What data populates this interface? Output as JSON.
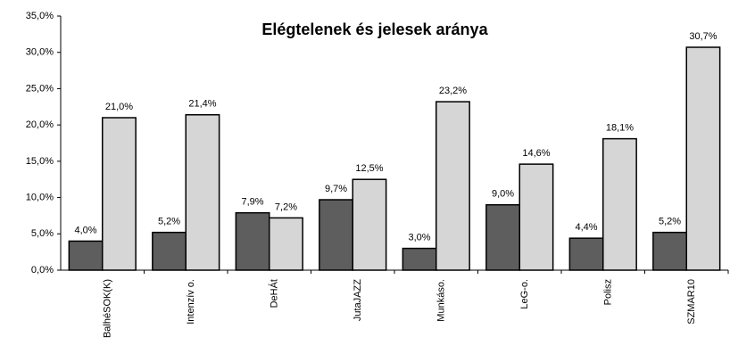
{
  "chart_data": {
    "type": "bar",
    "title": "Elégtelenek és jelesek aránya",
    "categories": [
      "BalhéSOK(K)",
      "Intenzív o.",
      "DeHÁt",
      "JutaJAZZ",
      "Munkáso.",
      "LeG-o.",
      "Polisz",
      "SZMAR10"
    ],
    "series": [
      {
        "color": "#5e5e5e",
        "values": [
          4.0,
          5.2,
          7.9,
          9.7,
          3.0,
          9.0,
          4.4,
          5.2
        ],
        "value_labels": [
          "4,0%",
          "5,2%",
          "7,9%",
          "9,7%",
          "3,0%",
          "9,0%",
          "4,4%",
          "5,2%"
        ]
      },
      {
        "color": "#d6d6d6",
        "values": [
          21.0,
          21.4,
          7.2,
          12.5,
          23.2,
          14.6,
          18.1,
          30.7
        ],
        "value_labels": [
          "21,0%",
          "21,4%",
          "7,2%",
          "12,5%",
          "23,2%",
          "14,6%",
          "18,1%",
          "30,7%"
        ]
      }
    ],
    "ylim": [
      0,
      35
    ],
    "yticks": [
      {
        "value": 0,
        "label": "0,0%"
      },
      {
        "value": 5,
        "label": "5,0%"
      },
      {
        "value": 10,
        "label": "10,0%"
      },
      {
        "value": 15,
        "label": "15,0%"
      },
      {
        "value": 20,
        "label": "20,0%"
      },
      {
        "value": 25,
        "label": "25,0%"
      },
      {
        "value": 30,
        "label": "30,0%"
      },
      {
        "value": 35,
        "label": "35,0%"
      }
    ],
    "grid": false
  }
}
